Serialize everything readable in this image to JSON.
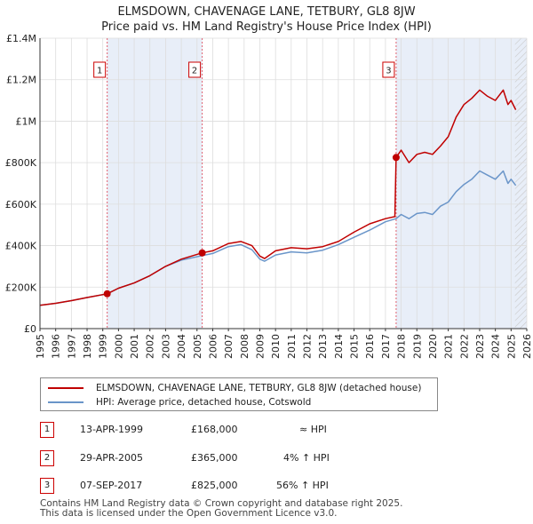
{
  "title_line1": "ELMSDOWN, CHAVENAGE LANE, TETBURY, GL8 8JW",
  "title_line2": "Price paid vs. HM Land Registry's House Price Index (HPI)",
  "colors": {
    "price_paid": "#c00000",
    "hpi": "#6a95c9",
    "shade": "#e8eef8",
    "marker_border": "#cc0000",
    "grid": "#dddddd"
  },
  "legend": {
    "price_paid_label": "ELMSDOWN, CHAVENAGE LANE, TETBURY, GL8 8JW (detached house)",
    "hpi_label": "HPI: Average price, detached house, Cotswold"
  },
  "sales": [
    {
      "num": "1",
      "date": "13-APR-1999",
      "price": "£168,000",
      "hpi_rel": "≈ HPI"
    },
    {
      "num": "2",
      "date": "29-APR-2005",
      "price": "£365,000",
      "hpi_rel": "4% ↑ HPI"
    },
    {
      "num": "3",
      "date": "07-SEP-2017",
      "price": "£825,000",
      "hpi_rel": "56% ↑ HPI"
    }
  ],
  "footer": {
    "line1": "Contains HM Land Registry data © Crown copyright and database right 2025.",
    "line2": "This data is licensed under the Open Government Licence v3.0."
  },
  "chart_data": {
    "type": "line",
    "title": "ELMSDOWN, CHAVENAGE LANE, TETBURY, GL8 8JW — Price paid vs. HM Land Registry's House Price Index (HPI)",
    "xlim": [
      1995,
      2026
    ],
    "ylim": [
      0,
      1400000
    ],
    "x_ticks": [
      1995,
      1996,
      1997,
      1998,
      1999,
      2000,
      2001,
      2002,
      2003,
      2004,
      2005,
      2006,
      2007,
      2008,
      2009,
      2010,
      2011,
      2012,
      2013,
      2014,
      2015,
      2016,
      2017,
      2018,
      2019,
      2020,
      2021,
      2022,
      2023,
      2024,
      2025,
      2026
    ],
    "y_ticks": [
      {
        "value": 0,
        "label": "£0"
      },
      {
        "value": 200000,
        "label": "£200K"
      },
      {
        "value": 400000,
        "label": "£400K"
      },
      {
        "value": 600000,
        "label": "£600K"
      },
      {
        "value": 800000,
        "label": "£800K"
      },
      {
        "value": 1000000,
        "label": "£1M"
      },
      {
        "value": 1200000,
        "label": "£1.2M"
      },
      {
        "value": 1400000,
        "label": "£1.4M"
      }
    ],
    "shaded_spans": [
      [
        1999.28,
        2005.33
      ],
      [
        2017.68,
        2026
      ]
    ],
    "forecast_hatch_from": 2025.25,
    "sale_markers": [
      {
        "label": "1",
        "x": 1999.28,
        "y": 168000
      },
      {
        "label": "2",
        "x": 2005.33,
        "y": 365000
      },
      {
        "label": "3",
        "x": 2017.68,
        "y": 825000
      }
    ],
    "series": [
      {
        "name": "ELMSDOWN, CHAVENAGE LANE, TETBURY, GL8 8JW (detached house)",
        "x": [
          1995,
          1996,
          1997,
          1998,
          1999.28,
          2000,
          2001,
          2002,
          2003,
          2004,
          2005.33,
          2006,
          2007,
          2007.8,
          2008.5,
          2009,
          2009.3,
          2010,
          2011,
          2012,
          2013,
          2014,
          2015,
          2016,
          2017,
          2017.6,
          2017.68,
          2018,
          2018.5,
          2019,
          2019.5,
          2020,
          2020.5,
          2021,
          2021.5,
          2022,
          2022.5,
          2023,
          2023.5,
          2024,
          2024.5,
          2024.8,
          2025,
          2025.3
        ],
        "y": [
          112000,
          122000,
          135000,
          150000,
          168000,
          195000,
          220000,
          255000,
          300000,
          335000,
          365000,
          375000,
          410000,
          420000,
          400000,
          350000,
          338000,
          375000,
          390000,
          385000,
          395000,
          420000,
          465000,
          505000,
          530000,
          540000,
          825000,
          860000,
          800000,
          840000,
          850000,
          840000,
          880000,
          925000,
          1020000,
          1080000,
          1110000,
          1150000,
          1120000,
          1100000,
          1150000,
          1080000,
          1100000,
          1055000
        ]
      },
      {
        "name": "HPI: Average price, detached house, Cotswold",
        "x": [
          1995,
          1996,
          1997,
          1998,
          1999.28,
          2000,
          2001,
          2002,
          2003,
          2004,
          2005.33,
          2006,
          2007,
          2007.8,
          2008.5,
          2009,
          2009.3,
          2010,
          2011,
          2012,
          2013,
          2014,
          2015,
          2016,
          2017,
          2017.68,
          2018,
          2018.5,
          2019,
          2019.5,
          2020,
          2020.5,
          2021,
          2021.5,
          2022,
          2022.5,
          2023,
          2023.5,
          2024,
          2024.5,
          2024.8,
          2025,
          2025.3
        ],
        "y": [
          112000,
          122000,
          135000,
          150000,
          168000,
          195000,
          220000,
          255000,
          300000,
          330000,
          352000,
          362000,
          395000,
          405000,
          380000,
          335000,
          325000,
          355000,
          370000,
          365000,
          378000,
          405000,
          440000,
          475000,
          515000,
          530000,
          550000,
          530000,
          555000,
          560000,
          550000,
          590000,
          610000,
          660000,
          695000,
          720000,
          760000,
          740000,
          720000,
          760000,
          700000,
          720000,
          690000
        ]
      }
    ]
  }
}
